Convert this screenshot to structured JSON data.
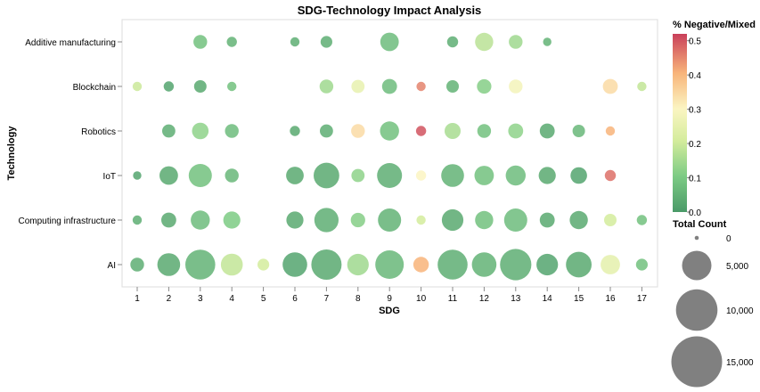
{
  "chart_data": {
    "type": "scatter",
    "title": "SDG-Technology Impact Analysis",
    "xlabel": "SDG",
    "ylabel": "Technology",
    "x_ticks": [
      "1",
      "2",
      "3",
      "4",
      "5",
      "6",
      "7",
      "8",
      "9",
      "10",
      "11",
      "12",
      "13",
      "14",
      "15",
      "16",
      "17"
    ],
    "y_categories": [
      "Additive manufacturing",
      "Blockchain",
      "Robotics",
      "IoT",
      "Computing infrastructure",
      "AI"
    ],
    "color_legend": {
      "title": "% Negative/Mixed",
      "ticks": [
        "0.5",
        "0.4",
        "0.3",
        "0.2",
        "0.1",
        "0.0"
      ],
      "domain": [
        0,
        0.52
      ]
    },
    "size_legend": {
      "title": "Total Count",
      "entries": [
        {
          "label": "0",
          "value": 100
        },
        {
          "label": "5,000",
          "value": 5000
        },
        {
          "label": "10,000",
          "value": 10000
        },
        {
          "label": "15,000",
          "value": 15000
        }
      ]
    },
    "points": [
      {
        "tech": "Additive manufacturing",
        "sdg": 3,
        "count": 1100,
        "neg": 0.08
      },
      {
        "tech": "Additive manufacturing",
        "sdg": 4,
        "count": 600,
        "neg": 0.05
      },
      {
        "tech": "Additive manufacturing",
        "sdg": 6,
        "count": 500,
        "neg": 0.04
      },
      {
        "tech": "Additive manufacturing",
        "sdg": 7,
        "count": 800,
        "neg": 0.04
      },
      {
        "tech": "Additive manufacturing",
        "sdg": 9,
        "count": 2000,
        "neg": 0.07
      },
      {
        "tech": "Additive manufacturing",
        "sdg": 11,
        "count": 700,
        "neg": 0.04
      },
      {
        "tech": "Additive manufacturing",
        "sdg": 12,
        "count": 1900,
        "neg": 0.17
      },
      {
        "tech": "Additive manufacturing",
        "sdg": 13,
        "count": 1100,
        "neg": 0.14
      },
      {
        "tech": "Additive manufacturing",
        "sdg": 14,
        "count": 400,
        "neg": 0.05
      },
      {
        "tech": "Blockchain",
        "sdg": 1,
        "count": 500,
        "neg": 0.19
      },
      {
        "tech": "Blockchain",
        "sdg": 2,
        "count": 600,
        "neg": 0.02
      },
      {
        "tech": "Blockchain",
        "sdg": 3,
        "count": 900,
        "neg": 0.03
      },
      {
        "tech": "Blockchain",
        "sdg": 4,
        "count": 500,
        "neg": 0.08
      },
      {
        "tech": "Blockchain",
        "sdg": 7,
        "count": 1100,
        "neg": 0.14
      },
      {
        "tech": "Blockchain",
        "sdg": 8,
        "count": 1000,
        "neg": 0.25
      },
      {
        "tech": "Blockchain",
        "sdg": 9,
        "count": 1300,
        "neg": 0.07
      },
      {
        "tech": "Blockchain",
        "sdg": 10,
        "count": 500,
        "neg": 0.45
      },
      {
        "tech": "Blockchain",
        "sdg": 11,
        "count": 900,
        "neg": 0.05
      },
      {
        "tech": "Blockchain",
        "sdg": 12,
        "count": 1200,
        "neg": 0.11
      },
      {
        "tech": "Blockchain",
        "sdg": 13,
        "count": 1100,
        "neg": 0.28
      },
      {
        "tech": "Blockchain",
        "sdg": 16,
        "count": 1300,
        "neg": 0.34
      },
      {
        "tech": "Blockchain",
        "sdg": 17,
        "count": 500,
        "neg": 0.18
      },
      {
        "tech": "Robotics",
        "sdg": 2,
        "count": 1000,
        "neg": 0.04
      },
      {
        "tech": "Robotics",
        "sdg": 3,
        "count": 1600,
        "neg": 0.12
      },
      {
        "tech": "Robotics",
        "sdg": 4,
        "count": 1100,
        "neg": 0.07
      },
      {
        "tech": "Robotics",
        "sdg": 6,
        "count": 600,
        "neg": 0.03
      },
      {
        "tech": "Robotics",
        "sdg": 7,
        "count": 1000,
        "neg": 0.04
      },
      {
        "tech": "Robotics",
        "sdg": 8,
        "count": 1100,
        "neg": 0.34
      },
      {
        "tech": "Robotics",
        "sdg": 9,
        "count": 2100,
        "neg": 0.08
      },
      {
        "tech": "Robotics",
        "sdg": 10,
        "count": 600,
        "neg": 0.5
      },
      {
        "tech": "Robotics",
        "sdg": 11,
        "count": 1500,
        "neg": 0.15
      },
      {
        "tech": "Robotics",
        "sdg": 12,
        "count": 1100,
        "neg": 0.08
      },
      {
        "tech": "Robotics",
        "sdg": 13,
        "count": 1300,
        "neg": 0.12
      },
      {
        "tech": "Robotics",
        "sdg": 14,
        "count": 1300,
        "neg": 0.03
      },
      {
        "tech": "Robotics",
        "sdg": 15,
        "count": 900,
        "neg": 0.06
      },
      {
        "tech": "Robotics",
        "sdg": 16,
        "count": 500,
        "neg": 0.4
      },
      {
        "tech": "IoT",
        "sdg": 1,
        "count": 400,
        "neg": 0.02
      },
      {
        "tech": "IoT",
        "sdg": 2,
        "count": 2000,
        "neg": 0.03
      },
      {
        "tech": "IoT",
        "sdg": 3,
        "count": 3100,
        "neg": 0.08
      },
      {
        "tech": "IoT",
        "sdg": 4,
        "count": 1100,
        "neg": 0.06
      },
      {
        "tech": "IoT",
        "sdg": 6,
        "count": 1800,
        "neg": 0.03
      },
      {
        "tech": "IoT",
        "sdg": 7,
        "count": 3800,
        "neg": 0.03
      },
      {
        "tech": "IoT",
        "sdg": 8,
        "count": 1000,
        "neg": 0.12
      },
      {
        "tech": "IoT",
        "sdg": 9,
        "count": 3600,
        "neg": 0.04
      },
      {
        "tech": "IoT",
        "sdg": 10,
        "count": 600,
        "neg": 0.3
      },
      {
        "tech": "IoT",
        "sdg": 11,
        "count": 3000,
        "neg": 0.05
      },
      {
        "tech": "IoT",
        "sdg": 12,
        "count": 2200,
        "neg": 0.08
      },
      {
        "tech": "IoT",
        "sdg": 13,
        "count": 2300,
        "neg": 0.07
      },
      {
        "tech": "IoT",
        "sdg": 14,
        "count": 1700,
        "neg": 0.03
      },
      {
        "tech": "IoT",
        "sdg": 15,
        "count": 1600,
        "neg": 0.02
      },
      {
        "tech": "IoT",
        "sdg": 16,
        "count": 700,
        "neg": 0.47
      },
      {
        "tech": "Computing infrastructure",
        "sdg": 1,
        "count": 500,
        "neg": 0.04
      },
      {
        "tech": "Computing infrastructure",
        "sdg": 2,
        "count": 1300,
        "neg": 0.03
      },
      {
        "tech": "Computing infrastructure",
        "sdg": 3,
        "count": 2100,
        "neg": 0.07
      },
      {
        "tech": "Computing infrastructure",
        "sdg": 4,
        "count": 1700,
        "neg": 0.1
      },
      {
        "tech": "Computing infrastructure",
        "sdg": 6,
        "count": 1700,
        "neg": 0.03
      },
      {
        "tech": "Computing infrastructure",
        "sdg": 7,
        "count": 3400,
        "neg": 0.04
      },
      {
        "tech": "Computing infrastructure",
        "sdg": 8,
        "count": 1200,
        "neg": 0.11
      },
      {
        "tech": "Computing infrastructure",
        "sdg": 9,
        "count": 3100,
        "neg": 0.05
      },
      {
        "tech": "Computing infrastructure",
        "sdg": 10,
        "count": 500,
        "neg": 0.2
      },
      {
        "tech": "Computing infrastructure",
        "sdg": 11,
        "count": 2700,
        "neg": 0.03
      },
      {
        "tech": "Computing infrastructure",
        "sdg": 12,
        "count": 1900,
        "neg": 0.08
      },
      {
        "tech": "Computing infrastructure",
        "sdg": 13,
        "count": 3100,
        "neg": 0.07
      },
      {
        "tech": "Computing infrastructure",
        "sdg": 14,
        "count": 1300,
        "neg": 0.03
      },
      {
        "tech": "Computing infrastructure",
        "sdg": 15,
        "count": 1900,
        "neg": 0.03
      },
      {
        "tech": "Computing infrastructure",
        "sdg": 16,
        "count": 900,
        "neg": 0.2
      },
      {
        "tech": "Computing infrastructure",
        "sdg": 17,
        "count": 600,
        "neg": 0.08
      },
      {
        "tech": "AI",
        "sdg": 1,
        "count": 1100,
        "neg": 0.04
      },
      {
        "tech": "AI",
        "sdg": 2,
        "count": 3000,
        "neg": 0.03
      },
      {
        "tech": "AI",
        "sdg": 3,
        "count": 5200,
        "neg": 0.05
      },
      {
        "tech": "AI",
        "sdg": 4,
        "count": 2800,
        "neg": 0.18
      },
      {
        "tech": "AI",
        "sdg": 5,
        "count": 800,
        "neg": 0.2
      },
      {
        "tech": "AI",
        "sdg": 6,
        "count": 3500,
        "neg": 0.02
      },
      {
        "tech": "AI",
        "sdg": 7,
        "count": 5300,
        "neg": 0.03
      },
      {
        "tech": "AI",
        "sdg": 8,
        "count": 2700,
        "neg": 0.14
      },
      {
        "tech": "AI",
        "sdg": 9,
        "count": 4700,
        "neg": 0.06
      },
      {
        "tech": "AI",
        "sdg": 10,
        "count": 1400,
        "neg": 0.4
      },
      {
        "tech": "AI",
        "sdg": 11,
        "count": 5200,
        "neg": 0.04
      },
      {
        "tech": "AI",
        "sdg": 12,
        "count": 3500,
        "neg": 0.05
      },
      {
        "tech": "AI",
        "sdg": 13,
        "count": 5700,
        "neg": 0.04
      },
      {
        "tech": "AI",
        "sdg": 14,
        "count": 2700,
        "neg": 0.02
      },
      {
        "tech": "AI",
        "sdg": 15,
        "count": 3800,
        "neg": 0.03
      },
      {
        "tech": "AI",
        "sdg": 16,
        "count": 2200,
        "neg": 0.24
      },
      {
        "tech": "AI",
        "sdg": 17,
        "count": 800,
        "neg": 0.08
      }
    ]
  }
}
